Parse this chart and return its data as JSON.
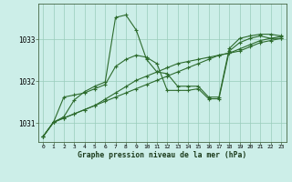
{
  "xlabel": "Graphe pression niveau de la mer (hPa)",
  "background_color": "#c8e8e0",
  "plot_bg_color": "#cceee8",
  "grid_color": "#99ccbb",
  "line_color": "#2d6b2d",
  "xlim": [
    -0.5,
    23.5
  ],
  "ylim": [
    1030.55,
    1033.85
  ],
  "yticks": [
    1031,
    1032,
    1033
  ],
  "xticks": [
    0,
    1,
    2,
    3,
    4,
    5,
    6,
    7,
    8,
    9,
    10,
    11,
    12,
    13,
    14,
    15,
    16,
    17,
    18,
    19,
    20,
    21,
    22,
    23
  ],
  "series": [
    [
      1030.68,
      1031.02,
      1031.15,
      1031.55,
      1031.75,
      1031.88,
      1031.98,
      1033.52,
      1033.58,
      1033.22,
      1032.52,
      1032.22,
      1032.18,
      1031.88,
      1031.88,
      1031.88,
      1031.62,
      1031.62,
      1032.78,
      1033.02,
      1033.08,
      1033.12,
      1033.12,
      1033.08
    ],
    [
      1030.68,
      1031.02,
      1031.62,
      1031.67,
      1031.72,
      1031.82,
      1031.92,
      1032.35,
      1032.52,
      1032.62,
      1032.57,
      1032.42,
      1031.78,
      1031.78,
      1031.78,
      1031.82,
      1031.58,
      1031.58,
      1032.72,
      1032.92,
      1033.02,
      1033.08,
      1033.02,
      1033.02
    ],
    [
      1030.68,
      1031.02,
      1031.12,
      1031.22,
      1031.32,
      1031.42,
      1031.57,
      1031.72,
      1031.87,
      1032.02,
      1032.12,
      1032.22,
      1032.32,
      1032.42,
      1032.47,
      1032.52,
      1032.57,
      1032.62,
      1032.67,
      1032.77,
      1032.87,
      1032.97,
      1033.02,
      1033.07
    ],
    [
      1030.68,
      1031.02,
      1031.12,
      1031.22,
      1031.32,
      1031.42,
      1031.52,
      1031.62,
      1031.72,
      1031.82,
      1031.92,
      1032.02,
      1032.12,
      1032.22,
      1032.32,
      1032.42,
      1032.52,
      1032.62,
      1032.67,
      1032.72,
      1032.82,
      1032.92,
      1032.97,
      1033.02
    ]
  ]
}
